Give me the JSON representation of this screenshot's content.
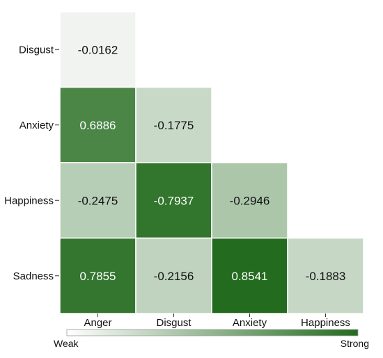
{
  "chart_data": {
    "type": "heatmap",
    "title": "",
    "xlabel": "",
    "ylabel": "",
    "x_categories": [
      "Anger",
      "Disgust",
      "Anxiety",
      "Happiness"
    ],
    "y_categories": [
      "Disgust",
      "Anxiety",
      "Happiness",
      "Sadness"
    ],
    "matrix": [
      [
        -0.0162,
        null,
        null,
        null
      ],
      [
        0.6886,
        -0.1775,
        null,
        null
      ],
      [
        -0.2475,
        -0.7937,
        -0.2946,
        null
      ],
      [
        0.7855,
        -0.2156,
        0.8541,
        -0.1883
      ]
    ],
    "value_labels": [
      [
        "-0.0162",
        null,
        null,
        null
      ],
      [
        "0.6886",
        "-0.1775",
        null,
        null
      ],
      [
        "-0.2475",
        "-0.7937",
        "-0.2946",
        null
      ],
      [
        "0.7855",
        "-0.2156",
        "0.8541",
        "-0.1883"
      ]
    ],
    "color_scale": {
      "metric": "absolute value",
      "low_color": "#f4f6f4",
      "high_color": "#236b1e",
      "min": 0,
      "max": 0.8541
    },
    "legend": {
      "low_label": "Weak",
      "high_label": "Strong",
      "placement": "bottom"
    },
    "lower_triangle_only": true,
    "grid": false
  }
}
